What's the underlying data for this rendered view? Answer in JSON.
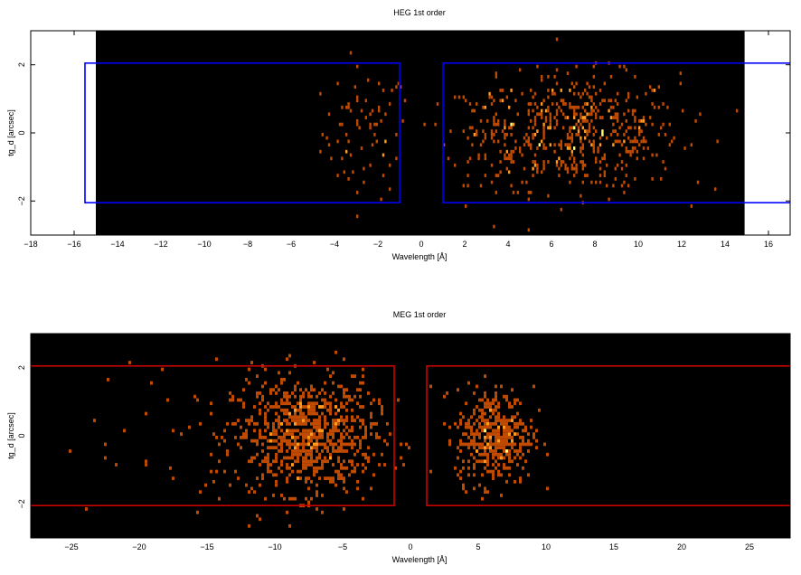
{
  "colors": {
    "background_empty": "#ffffff",
    "background_data": "#000000",
    "heg_region": "#0000ff",
    "meg_region": "#cc0000",
    "heat_low": "#c04a00",
    "heat_mid": "#ff9a1e",
    "heat_high": "#ffff7a"
  },
  "chart_data": [
    {
      "type": "heatmap",
      "title": "HEG 1st order",
      "xlabel": "Wavelength [Å]",
      "ylabel": "tg_d [arcsec]",
      "xlim": [
        -18,
        17
      ],
      "ylim": [
        -3,
        3
      ],
      "xticks": [
        -18,
        -16,
        -14,
        -12,
        -10,
        -8,
        -6,
        -4,
        -2,
        0,
        2,
        4,
        6,
        8,
        10,
        12,
        14,
        16
      ],
      "yticks": [
        -2,
        0,
        2
      ],
      "grid": false,
      "data_window_x": [
        -15,
        14.9
      ],
      "regions": [
        {
          "x": [
            -1,
            -15.5
          ],
          "y": [
            -2.05,
            2.05
          ],
          "color": "#0000ff"
        },
        {
          "x": [
            1,
            18
          ],
          "y": [
            -2.05,
            2.05
          ],
          "color": "#0000ff"
        }
      ],
      "clusters": [
        {
          "x_center": -2.6,
          "x_sigma": 1.0,
          "y_sigma": 0.95,
          "count": 75
        },
        {
          "x_center": 7.3,
          "x_sigma": 2.3,
          "y_sigma": 0.85,
          "count": 520
        },
        {
          "x_center": 3.6,
          "x_sigma": 1.2,
          "y_sigma": 0.95,
          "count": 90
        }
      ]
    },
    {
      "type": "heatmap",
      "title": "MEG 1st order",
      "xlabel": "Wavelength [Å]",
      "ylabel": "tg_d [arcsec]",
      "xlim": [
        -28,
        28
      ],
      "ylim": [
        -3,
        3
      ],
      "xticks": [
        -25,
        -20,
        -15,
        -10,
        -5,
        0,
        5,
        10,
        15,
        20,
        25
      ],
      "yticks": [
        -2,
        0,
        2
      ],
      "grid": false,
      "data_window_x": [
        -28,
        28
      ],
      "regions": [
        {
          "x": [
            -1.2,
            -30
          ],
          "y": [
            -2.05,
            2.05
          ],
          "color": "#cc0000"
        },
        {
          "x": [
            1.2,
            30
          ],
          "y": [
            -2.05,
            2.05
          ],
          "color": "#cc0000"
        }
      ],
      "clusters": [
        {
          "x_center": -7.8,
          "x_sigma": 2.6,
          "y_sigma": 0.85,
          "count": 850
        },
        {
          "x_center": 6.2,
          "x_sigma": 1.4,
          "y_sigma": 0.7,
          "count": 420
        },
        {
          "x_center": -18,
          "x_sigma": 6,
          "y_sigma": 1.2,
          "count": 40
        }
      ]
    }
  ]
}
